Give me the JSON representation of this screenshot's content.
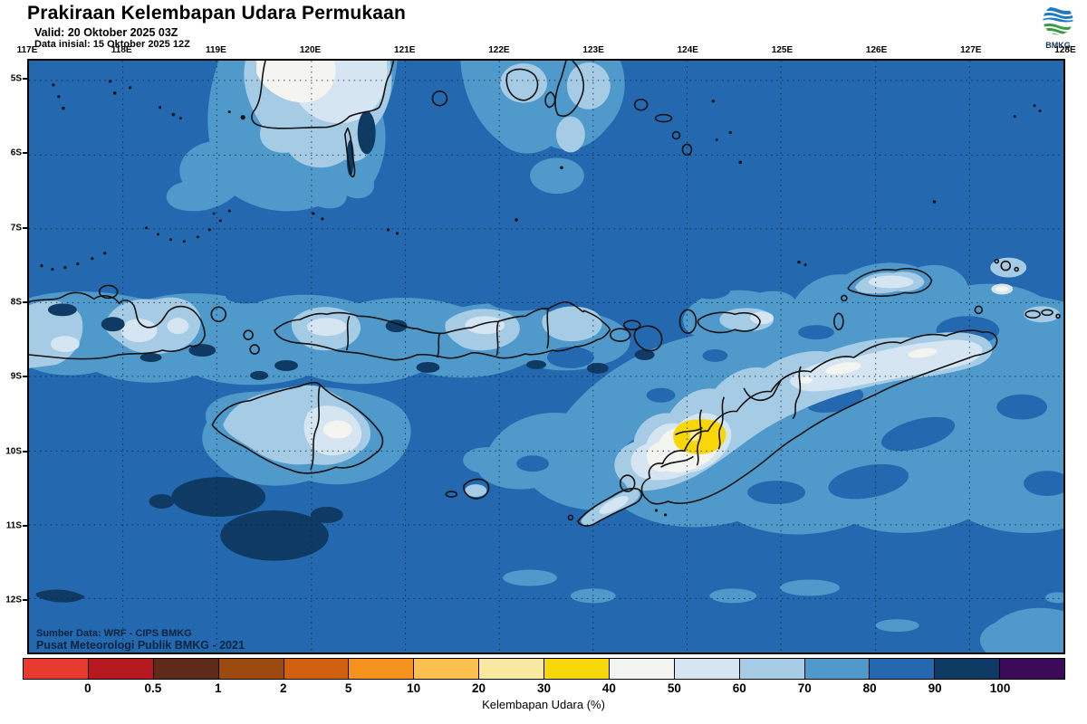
{
  "header": {
    "title": "Prakiraan Kelembapan Udara Permukaan",
    "valid": "Valid: 20 Oktober 2025 03Z",
    "init": "Data inisial: 15 Oktober 2025 12Z"
  },
  "logo": {
    "text": "BMKG"
  },
  "map": {
    "top_axis": [
      "117E",
      "118E",
      "119E",
      "120E",
      "121E",
      "122E",
      "123E",
      "124E",
      "125E",
      "126E",
      "127E",
      "128E"
    ],
    "left_axis": [
      "5S",
      "6S",
      "7S",
      "8S",
      "9S",
      "10S",
      "11S",
      "12S"
    ],
    "credit_line1": "Sumber Data: WRF - CIPS BMKG",
    "credit_line2": "Pusat Meteorologi Publik BMKG - 2021"
  },
  "colorbar": {
    "tick_labels": [
      "0",
      "0.5",
      "1",
      "2",
      "5",
      "10",
      "20",
      "30",
      "40",
      "50",
      "60",
      "70",
      "80",
      "90",
      "100"
    ],
    "segment_colors": [
      "#e8392e",
      "#b5191f",
      "#5f2a18",
      "#9c4a10",
      "#d05f10",
      "#f5921e",
      "#fdc04e",
      "#f9e8a0",
      "#f8d70a",
      "#f4f4f1",
      "#d6e5f2",
      "#a5cce4",
      "#4f9aca",
      "#2468af",
      "#0e3a63",
      "#3c0a59"
    ],
    "caption": "Kelembapan Udara (%)"
  },
  "colors": {
    "sea_80_90": "#2468af",
    "h70_80": "#4f9aca",
    "h60_70": "#a5cce4",
    "h50_60": "#d6e5f2",
    "h40_50": "#f4f4f1",
    "h30_40": "#f8d70a",
    "h20_30": "#f7e9a8",
    "h90_100": "#0e3a63",
    "coastline": "#111111",
    "logo_blue": "#1f7ac2",
    "logo_green": "#3a9c42"
  }
}
